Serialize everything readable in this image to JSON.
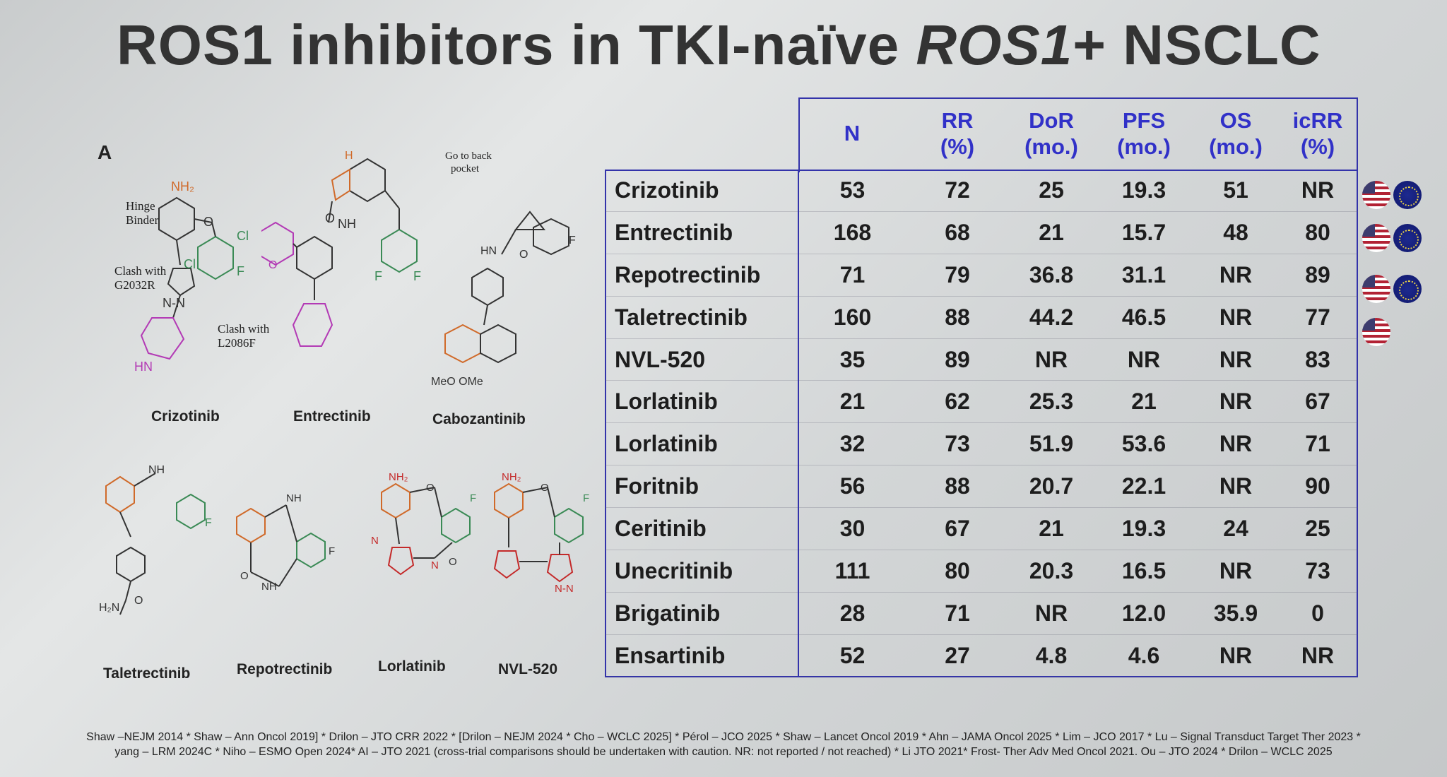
{
  "title": {
    "main": "ROS1 inhibitors in TKI-naïve ",
    "italic": "ROS1",
    "suffix": "+ NSCLC"
  },
  "figure": {
    "panel_letter": "A",
    "structures": [
      {
        "name": "Crizotinib"
      },
      {
        "name": "Entrectinib"
      },
      {
        "name": "Cabozantinib"
      },
      {
        "name": "Taletrectinib"
      },
      {
        "name": "Repotrectinib"
      },
      {
        "name": "Lorlatinib"
      },
      {
        "name": "NVL-520"
      }
    ],
    "annotations": {
      "hinge": "Hinge\nBinder",
      "clash1": "Clash with\nG2032R",
      "clash2": "Clash with\nL2086F",
      "back": "Go to back\npocket"
    }
  },
  "table": {
    "headers": [
      "N",
      "RR\n(%)",
      "DoR\n(mo.)",
      "PFS\n(mo.)",
      "OS\n(mo.)",
      "icRR\n(%)"
    ],
    "rows": [
      {
        "drug": "Crizotinib",
        "n": "53",
        "rr": "72",
        "dor": "25",
        "pfs": "19.3",
        "os": "51",
        "icrr": "NR"
      },
      {
        "drug": "Entrectinib",
        "n": "168",
        "rr": "68",
        "dor": "21",
        "pfs": "15.7",
        "os": "48",
        "icrr": "80"
      },
      {
        "drug": "Repotrectinib",
        "n": "71",
        "rr": "79",
        "dor": "36.8",
        "pfs": "31.1",
        "os": "NR",
        "icrr": "89"
      },
      {
        "drug": "Taletrectinib",
        "n": "160",
        "rr": "88",
        "dor": "44.2",
        "pfs": "46.5",
        "os": "NR",
        "icrr": "77"
      },
      {
        "drug": "NVL-520",
        "n": "35",
        "rr": "89",
        "dor": "NR",
        "pfs": "NR",
        "os": "NR",
        "icrr": "83"
      },
      {
        "drug": "Lorlatinib",
        "n": "21",
        "rr": "62",
        "dor": "25.3",
        "pfs": "21",
        "os": "NR",
        "icrr": "67"
      },
      {
        "drug": "Lorlatinib",
        "n": "32",
        "rr": "73",
        "dor": "51.9",
        "pfs": "53.6",
        "os": "NR",
        "icrr": "71"
      },
      {
        "drug": "Foritnib",
        "n": "56",
        "rr": "88",
        "dor": "20.7",
        "pfs": "22.1",
        "os": "NR",
        "icrr": "90"
      },
      {
        "drug": "Ceritinib",
        "n": "30",
        "rr": "67",
        "dor": "21",
        "pfs": "19.3",
        "os": "24",
        "icrr": "25"
      },
      {
        "drug": "Unecritinib",
        "n": "111",
        "rr": "80",
        "dor": "20.3",
        "pfs": "16.5",
        "os": "NR",
        "icrr": "73"
      },
      {
        "drug": "Brigatinib",
        "n": "28",
        "rr": "71",
        "dor": "NR",
        "pfs": "12.0",
        "os": "35.9",
        "icrr": "0"
      },
      {
        "drug": "Ensartinib",
        "n": "52",
        "rr": "27",
        "dor": "4.8",
        "pfs": "4.6",
        "os": "NR",
        "icrr": "NR"
      }
    ]
  },
  "flags": [
    {
      "row": "Crizotinib",
      "approvals": [
        "us-flag",
        "eu-flag"
      ]
    },
    {
      "row": "Entrectinib",
      "approvals": [
        "us-flag",
        "eu-flag"
      ]
    },
    {
      "row": "Repotrectinib",
      "approvals": [
        "us-flag",
        "eu-flag"
      ]
    },
    {
      "row": "Taletrectinib",
      "approvals": [
        "us-flag"
      ]
    }
  ],
  "footer": {
    "line1": "Shaw –NEJM 2014 * Shaw – Ann Oncol 2019] * Drilon – JTO CRR 2022 * [Drilon – NEJM 2024 * Cho – WCLC 2025] * Pérol – JCO 2025 * Shaw – Lancet Oncol 2019 * Ahn – JAMA Oncol 2025 * Lim – JCO 2017 * Lu – Signal Transduct Target Ther 2023 *",
    "line2": "yang – LRM 2024C * Niho – ESMO Open 2024* AI – JTO 2021 (cross-trial comparisons should be undertaken with caution. NR: not reported / not reached) * Li JTO 2021* Frost- Ther Adv Med Oncol 2021. Ou – JTO 2024 * Drilon – WCLC 2025"
  }
}
